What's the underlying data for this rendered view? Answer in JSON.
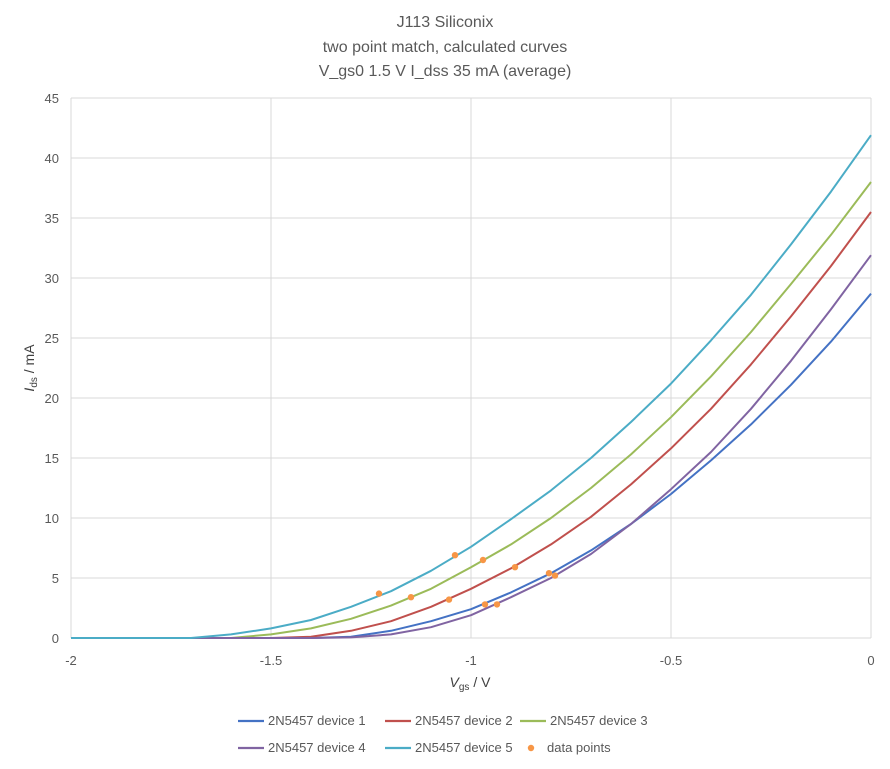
{
  "chart_data": {
    "type": "line",
    "title": [
      "J113 Siliconix",
      "two point match, calculated curves",
      "V_gs0 1.5 V I_dss 35 mA (average)"
    ],
    "xlabel": {
      "main": "V",
      "sub": "gs",
      "unit": " / V"
    },
    "ylabel": {
      "main": "I",
      "sub": "ds",
      "unit": " / mA"
    },
    "xlim": [
      -2,
      0
    ],
    "ylim": [
      0,
      45
    ],
    "xticks": [
      -2,
      -1.5,
      -1,
      -0.5,
      0
    ],
    "xtick_labels": [
      "-2",
      "-1.5",
      "-1",
      "-0.5",
      "0"
    ],
    "yticks": [
      0,
      5,
      10,
      15,
      20,
      25,
      30,
      35,
      40,
      45
    ],
    "ytick_labels": [
      "0",
      "5",
      "10",
      "15",
      "20",
      "25",
      "30",
      "35",
      "40",
      "45"
    ],
    "grid": "vertical and horizontal major gridlines",
    "legend_position": "bottom",
    "x": [
      -2.0,
      -1.9,
      -1.8,
      -1.7,
      -1.6,
      -1.5,
      -1.4,
      -1.3,
      -1.2,
      -1.1,
      -1.0,
      -0.9,
      -0.8,
      -0.7,
      -0.6,
      -0.5,
      -0.4,
      -0.3,
      -0.2,
      -0.1,
      0.0
    ],
    "series": [
      {
        "name": "2N5457 device 1",
        "color": "#4472C4",
        "values": [
          0,
          0,
          0,
          0,
          0,
          0,
          0,
          0.1,
          0.6,
          1.4,
          2.4,
          3.8,
          5.4,
          7.3,
          9.5,
          12.0,
          14.8,
          17.8,
          21.1,
          24.7,
          28.7
        ]
      },
      {
        "name": "2N5457 device 2",
        "color": "#C0504D",
        "values": [
          0,
          0,
          0,
          0,
          0,
          0,
          0.1,
          0.6,
          1.4,
          2.6,
          4.1,
          5.8,
          7.8,
          10.1,
          12.8,
          15.8,
          19.1,
          22.8,
          26.8,
          31.0,
          35.5
        ]
      },
      {
        "name": "2N5457 device 3",
        "color": "#9BBB59",
        "values": [
          0,
          0,
          0,
          0,
          0,
          0.3,
          0.8,
          1.6,
          2.7,
          4.1,
          5.9,
          7.8,
          10.0,
          12.5,
          15.3,
          18.4,
          21.8,
          25.5,
          29.5,
          33.6,
          38.0
        ]
      },
      {
        "name": "2N5457 device 4",
        "color": "#8064A2",
        "values": [
          0,
          0,
          0,
          0,
          0,
          0,
          0,
          0.05,
          0.3,
          0.9,
          1.9,
          3.4,
          5.0,
          7.0,
          9.5,
          12.4,
          15.5,
          19.1,
          23.1,
          27.4,
          31.9
        ]
      },
      {
        "name": "2N5457 device 5",
        "color": "#4BACC6",
        "values": [
          0,
          0,
          0,
          0,
          0.3,
          0.8,
          1.5,
          2.6,
          3.9,
          5.6,
          7.6,
          9.9,
          12.3,
          15.0,
          18.0,
          21.2,
          24.8,
          28.6,
          32.8,
          37.2,
          41.9
        ]
      }
    ],
    "points": {
      "name": "data points",
      "color": "#F79646",
      "x": [
        -1.23,
        -1.15,
        -1.055,
        -1.04,
        -0.97,
        -0.965,
        -0.935,
        -0.89,
        -0.805,
        -0.79
      ],
      "y": [
        3.7,
        3.4,
        3.2,
        6.9,
        6.5,
        2.8,
        2.8,
        5.9,
        5.4,
        5.2
      ]
    }
  }
}
